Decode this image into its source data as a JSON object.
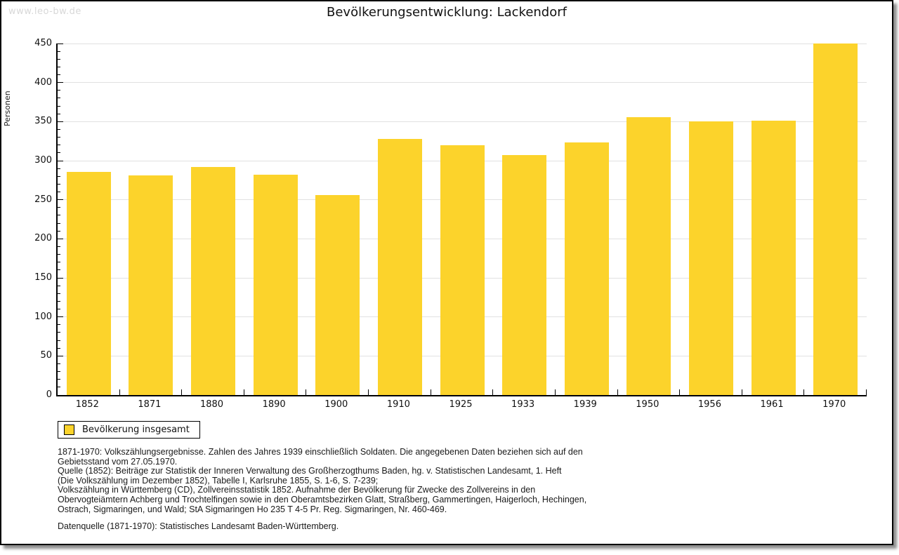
{
  "watermark": "www.leo-bw.de",
  "header": {
    "title": "Bevölkerungsentwicklung: Lackendorf"
  },
  "chart_data": {
    "type": "bar",
    "title": "Bevölkerungsentwicklung: Lackendorf",
    "xlabel": "",
    "ylabel": "Personen",
    "categories": [
      "1852",
      "1871",
      "1880",
      "1890",
      "1900",
      "1910",
      "1925",
      "1933",
      "1939",
      "1950",
      "1956",
      "1961",
      "1970"
    ],
    "series": [
      {
        "name": "Bevölkerung insgesamt",
        "values": [
          286,
          281,
          292,
          282,
          256,
          328,
          320,
          307,
          323,
          356,
          350,
          351,
          450
        ],
        "color": "#FCD32B"
      }
    ],
    "ylim": [
      0,
      450
    ],
    "ytick_step": 50,
    "ytick_minor_step": 10,
    "grid": true,
    "legend_position": "bottom-left"
  },
  "legend": {
    "label": "Bevölkerung insgesamt",
    "swatch_color": "#FCD32B"
  },
  "notes": {
    "source_lines": [
      "1871-1970: Volkszählungsergebnisse. Zahlen des Jahres 1939 einschließlich Soldaten. Die angegebenen Daten beziehen sich auf den",
      "Gebietsstand vom 27.05.1970.",
      "Quelle (1852): Beiträge zur Statistik der Inneren Verwaltung des Großherzogthums Baden, hg. v. Statistischen Landesamt, 1. Heft",
      "(Die Volkszählung im Dezember 1852), Tabelle I, Karlsruhe 1855, S. 1-6, S. 7-239;",
      "Volkszählung in Württemberg (CD), Zollvereinsstatistik 1852. Aufnahme der Bevölkerung für Zwecke des Zollvereins in den",
      "Obervogteiämtern Achberg und Trochtelfingen sowie in den Oberamtsbezirken Glatt, Straßberg, Gammertingen, Haigerloch, Hechingen,",
      "Ostrach, Sigmaringen, und Wald; StA Sigmaringen Ho 235 T 4-5 Pr. Reg. Sigmaringen, Nr. 460-469."
    ],
    "datasource": "Datenquelle (1871-1970): Statistisches Landesamt Baden-Württemberg."
  },
  "colors": {
    "bar": "#FCD32B",
    "grid": "#E1E1E1",
    "axis": "#000000",
    "watermark": "#D8D8D8"
  }
}
